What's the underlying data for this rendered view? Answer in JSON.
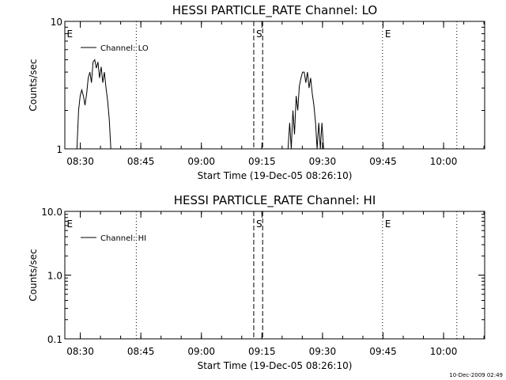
{
  "footer_timestamp": "10-Dec-2009 02:49",
  "chart_data": [
    {
      "type": "line",
      "title": "HESSI PARTICLE_RATE Channel: LO",
      "xlabel": "Start Time (19-Dec-05 08:26:10)",
      "ylabel": "Counts/sec",
      "x_units": "minutes since 08:26:10 UT",
      "xlim": [
        0,
        104
      ],
      "ylim": [
        1,
        10
      ],
      "yscale": "log",
      "x_ticks": [
        "08:30",
        "08:45",
        "09:00",
        "09:15",
        "09:30",
        "09:45",
        "10:00"
      ],
      "x_tick_positions": [
        3.83,
        18.83,
        33.83,
        48.83,
        63.83,
        78.83,
        93.83
      ],
      "y_ticks": [
        "1",
        "10"
      ],
      "y_tick_values": [
        1,
        10
      ],
      "legend": {
        "position": "top-left",
        "entries": [
          "Channel: LO"
        ]
      },
      "vlines": [
        {
          "x": 17.7,
          "style": "dotted"
        },
        {
          "x": 46.8,
          "style": "dashed"
        },
        {
          "x": 49.0,
          "style": "dashed"
        },
        {
          "x": 78.7,
          "style": "dotted"
        },
        {
          "x": 97.1,
          "style": "dotted"
        }
      ],
      "markers": [
        {
          "label": "E",
          "x": 0.5
        },
        {
          "label": "S",
          "x": 47.4
        },
        {
          "label": "E",
          "x": 79.3
        }
      ],
      "series": [
        {
          "name": "Channel: LO",
          "x": [
            3.0,
            3.4,
            3.8,
            4.2,
            4.6,
            5.0,
            5.4,
            5.8,
            6.2,
            6.6,
            7.0,
            7.4,
            7.8,
            8.2,
            8.6,
            9.0,
            9.4,
            9.8,
            10.2,
            10.6,
            11.0,
            11.4,
            11.8,
            12.2,
            12.6
          ],
          "y": [
            1.0,
            2.0,
            2.6,
            2.9,
            2.6,
            2.2,
            2.7,
            3.6,
            4.0,
            3.3,
            4.8,
            5.0,
            4.3,
            4.8,
            3.6,
            4.4,
            3.3,
            4.0,
            3.0,
            2.4,
            1.7,
            1.0,
            1.0,
            1.0,
            1.0
          ]
        },
        {
          "name": "Channel: LO",
          "x": [
            55.3,
            55.7,
            56.1,
            56.5,
            56.9,
            57.3,
            57.7,
            58.1,
            58.5,
            58.9,
            59.3,
            59.7,
            60.1,
            60.5,
            60.9,
            61.3,
            61.7,
            62.1,
            62.5,
            62.9,
            63.3,
            63.7,
            64.1
          ],
          "y": [
            1.0,
            1.6,
            1.0,
            2.0,
            1.3,
            2.6,
            2.0,
            3.1,
            3.6,
            4.0,
            4.0,
            3.3,
            4.0,
            3.0,
            3.6,
            2.7,
            2.2,
            1.6,
            1.0,
            1.6,
            1.0,
            1.6,
            1.0
          ]
        }
      ]
    },
    {
      "type": "line",
      "title": "HESSI PARTICLE_RATE Channel: HI",
      "xlabel": "Start Time (19-Dec-05 08:26:10)",
      "ylabel": "Counts/sec",
      "x_units": "minutes since 08:26:10 UT",
      "xlim": [
        0,
        104
      ],
      "ylim": [
        0.1,
        10
      ],
      "yscale": "log",
      "x_ticks": [
        "08:30",
        "08:45",
        "09:00",
        "09:15",
        "09:30",
        "09:45",
        "10:00"
      ],
      "x_tick_positions": [
        3.83,
        18.83,
        33.83,
        48.83,
        63.83,
        78.83,
        93.83
      ],
      "y_ticks": [
        "0.1",
        "1.0",
        "10.0"
      ],
      "y_tick_values": [
        0.1,
        1,
        10
      ],
      "legend": {
        "position": "top-left",
        "entries": [
          "Channel: HI"
        ]
      },
      "vlines": [
        {
          "x": 17.7,
          "style": "dotted"
        },
        {
          "x": 46.8,
          "style": "dashed"
        },
        {
          "x": 49.0,
          "style": "dashed"
        },
        {
          "x": 78.7,
          "style": "dotted"
        },
        {
          "x": 97.1,
          "style": "dotted"
        }
      ],
      "markers": [
        {
          "label": "E",
          "x": 0.5
        },
        {
          "label": "S",
          "x": 47.4
        },
        {
          "label": "E",
          "x": 79.3
        }
      ],
      "series": []
    }
  ]
}
